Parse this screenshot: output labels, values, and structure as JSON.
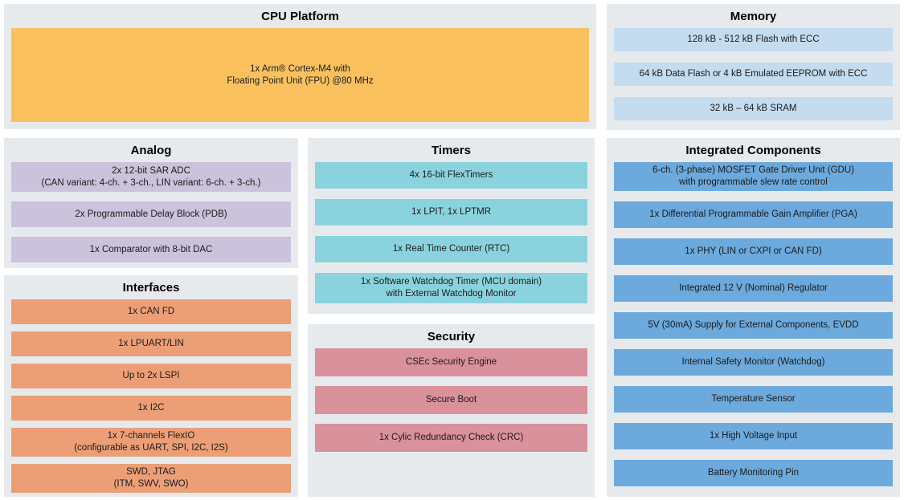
{
  "colors": {
    "section_background": "#e7eaed",
    "cpu_block": "#fac15e",
    "memory_block": "#c5dcf0",
    "analog_block": "#cbc3db",
    "timers_block": "#8ad3de",
    "interfaces_block": "#ec9f76",
    "security_block": "#d9919c",
    "integrated_block": "#6ca9dc"
  },
  "sections": {
    "cpu": {
      "title": "CPU Platform",
      "blocks": [
        "1x Arm® Cortex-M4 with\nFloating Point Unit (FPU) @80 MHz"
      ]
    },
    "memory": {
      "title": "Memory",
      "blocks": [
        "128 kB - 512 kB Flash with ECC",
        "64 kB Data Flash or 4 kB Emulated EEPROM with ECC",
        "32 kB – 64 kB SRAM"
      ]
    },
    "analog": {
      "title": "Analog",
      "blocks": [
        "2x 12-bit SAR ADC\n(CAN variant: 4-ch. + 3-ch., LIN variant: 6-ch. + 3-ch.)",
        "2x Programmable Delay Block (PDB)",
        "1x Comparator with 8-bit DAC"
      ]
    },
    "timers": {
      "title": "Timers",
      "blocks": [
        "4x 16-bit FlexTimers",
        "1x LPIT, 1x LPTMR",
        "1x Real Time Counter (RTC)",
        "1x Software Watchdog Timer (MCU domain)\nwith External Watchdog Monitor"
      ]
    },
    "interfaces": {
      "title": "Interfaces",
      "blocks": [
        "1x CAN FD",
        "1x LPUART/LIN",
        "Up to 2x LSPI",
        "1x I2C",
        "1x 7-channels FlexIO\n(configurable as UART, SPI, I2C, I2S)",
        "SWD, JTAG\n(ITM, SWV, SWO)"
      ]
    },
    "security": {
      "title": "Security",
      "blocks": [
        "CSEc Security Engine",
        "Secure Boot",
        "1x Cylic Redundancy Check (CRC)"
      ]
    },
    "integrated": {
      "title": "Integrated Components",
      "blocks": [
        "6-ch. (3-phase) MOSFET Gate Driver Unit (GDU)\nwith programmable slew rate control",
        "1x Differential Programmable Gain Amplifier (PGA)",
        "1x PHY (LIN or CXPI or CAN FD)",
        "Integrated 12 V (Nominal) Regulator",
        "5V (30mA) Supply for External Components, EVDD",
        "Internal Safety Monitor (Watchdog)",
        "Temperature Sensor",
        "1x High Voltage Input",
        "Battery Monitoring Pin"
      ]
    }
  }
}
